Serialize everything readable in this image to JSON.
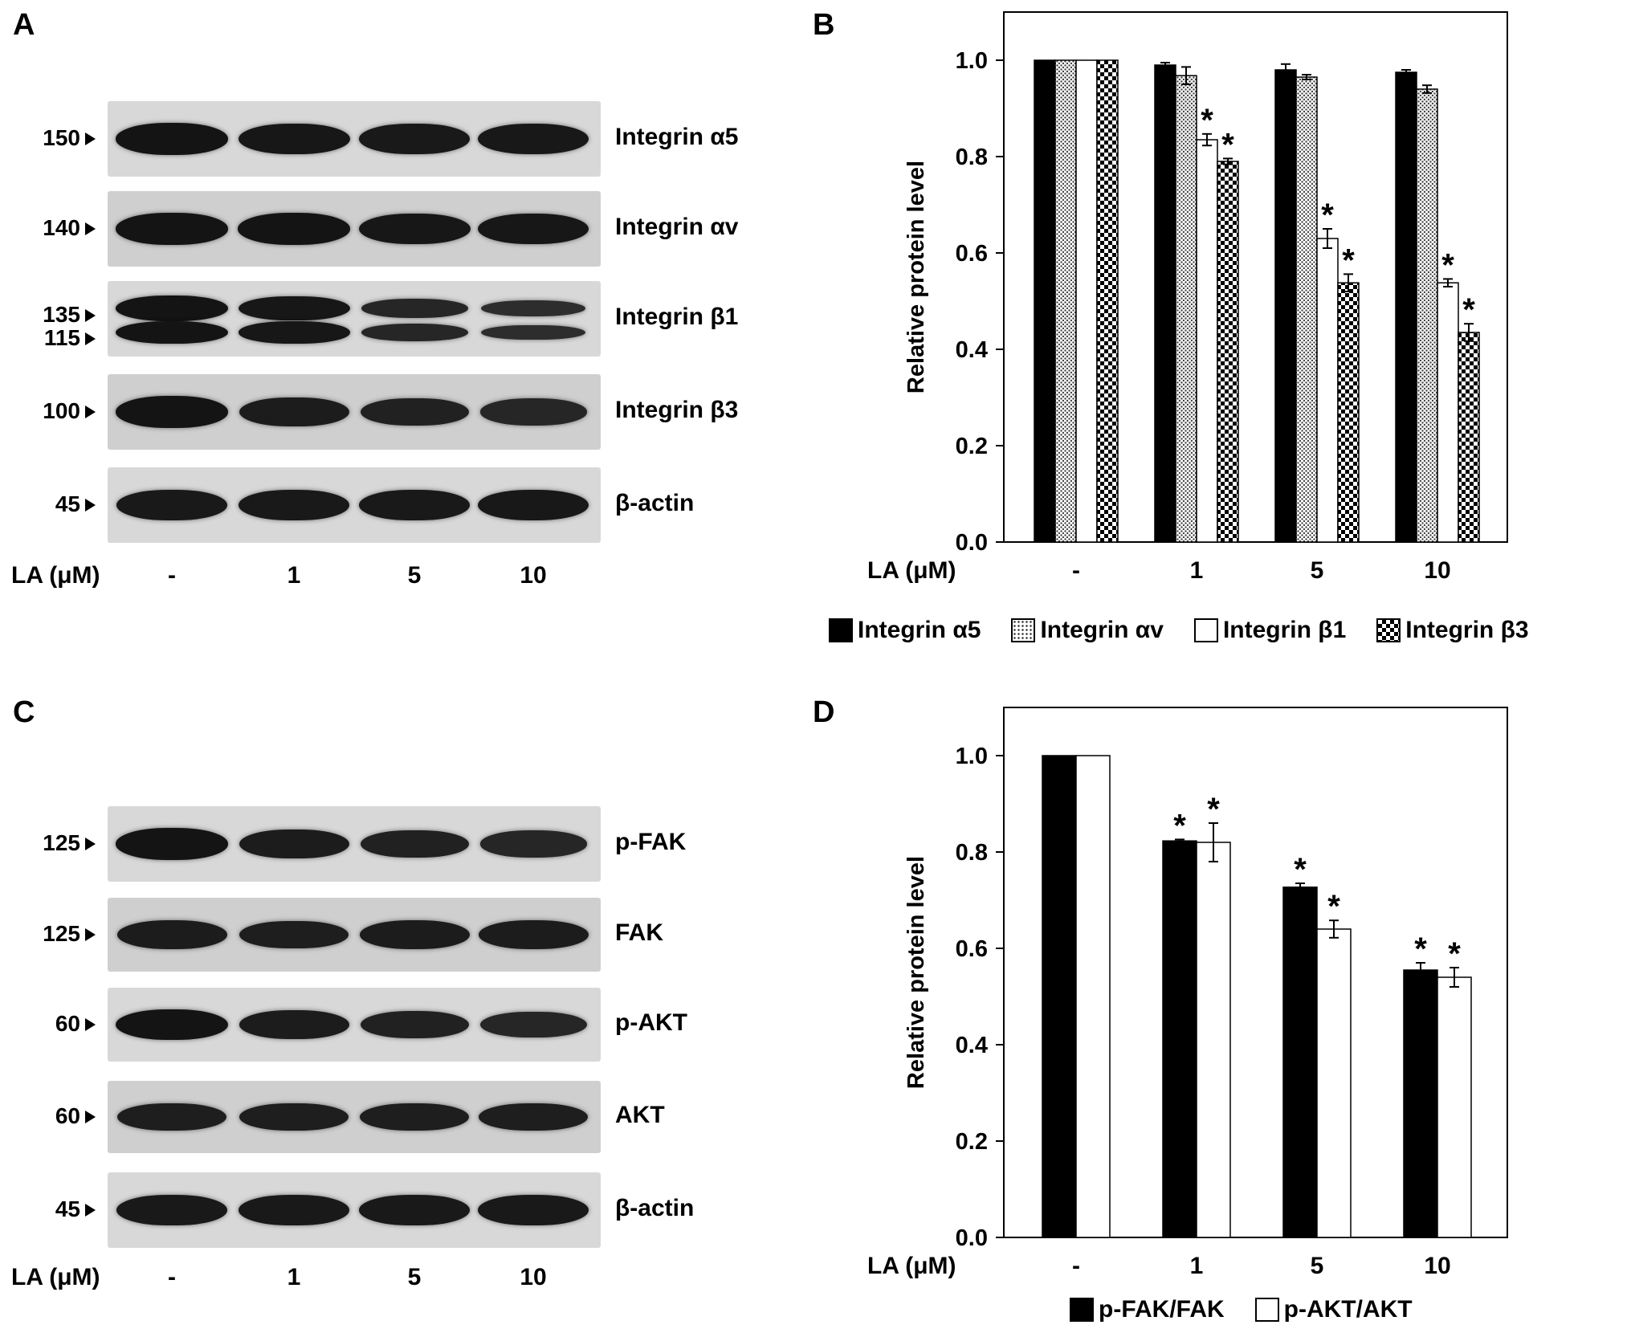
{
  "panels": {
    "A": "A",
    "B": "B",
    "C": "C",
    "D": "D"
  },
  "blot_A": {
    "rows": [
      {
        "protein": "Integrin α5",
        "mw": [
          "150"
        ],
        "intensity": [
          1.0,
          0.95,
          0.9,
          0.92
        ]
      },
      {
        "protein": "Integrin αv",
        "mw": [
          "140"
        ],
        "intensity": [
          1.0,
          1.0,
          0.95,
          0.93
        ]
      },
      {
        "protein": "Integrin β1",
        "mw": [
          "135",
          "115"
        ],
        "intensity": [
          1.0,
          0.95,
          0.65,
          0.5
        ]
      },
      {
        "protein": "Integrin β3",
        "mw": [
          "100"
        ],
        "intensity": [
          1.0,
          0.85,
          0.75,
          0.65
        ]
      },
      {
        "protein": "β-actin",
        "mw": [
          "45"
        ],
        "intensity": [
          0.9,
          0.9,
          0.9,
          0.92
        ]
      }
    ],
    "la_label": "LA  (μM)",
    "lanes": [
      "-",
      "1",
      "5",
      "10"
    ]
  },
  "blot_C": {
    "rows": [
      {
        "protein": "p-FAK",
        "mw": [
          "125"
        ],
        "intensity": [
          1.0,
          0.85,
          0.75,
          0.65
        ]
      },
      {
        "protein": "FAK",
        "mw": [
          "125"
        ],
        "intensity": [
          0.85,
          0.8,
          0.85,
          0.85
        ]
      },
      {
        "protein": "p-AKT",
        "mw": [
          "60"
        ],
        "intensity": [
          1.0,
          0.85,
          0.75,
          0.65
        ]
      },
      {
        "protein": "AKT",
        "mw": [
          "60"
        ],
        "intensity": [
          0.8,
          0.8,
          0.8,
          0.8
        ]
      },
      {
        "protein": "β-actin",
        "mw": [
          "45"
        ],
        "intensity": [
          0.9,
          0.9,
          0.9,
          0.9
        ]
      }
    ],
    "la_label": "LA  (μM)",
    "lanes": [
      "-",
      "1",
      "5",
      "10"
    ]
  },
  "chart_data": [
    {
      "panel": "B",
      "type": "bar",
      "ylabel": "Relative protein level",
      "xlabel": "LA  (μM)",
      "categories": [
        "-",
        "1",
        "5",
        "10"
      ],
      "ylim": [
        0,
        1.1
      ],
      "yticks": [
        "0.0",
        "0.2",
        "0.4",
        "0.6",
        "0.8",
        "1.0"
      ],
      "grid": false,
      "legend_position": "bottom",
      "series": [
        {
          "name": "Integrin α5",
          "pattern": "solid",
          "values": [
            1.0,
            0.99,
            0.98,
            0.975
          ],
          "errors": [
            0,
            0.005,
            0.012,
            0.005
          ],
          "significant": [
            false,
            false,
            false,
            false
          ]
        },
        {
          "name": "Integrin αv",
          "pattern": "dots",
          "values": [
            1.0,
            0.968,
            0.965,
            0.94
          ],
          "errors": [
            0,
            0.018,
            0.005,
            0.008
          ],
          "significant": [
            false,
            false,
            false,
            false
          ]
        },
        {
          "name": "Integrin β1",
          "pattern": "open",
          "values": [
            1.0,
            0.835,
            0.63,
            0.538
          ],
          "errors": [
            0,
            0.012,
            0.02,
            0.008
          ],
          "significant": [
            false,
            true,
            true,
            true
          ]
        },
        {
          "name": "Integrin β3",
          "pattern": "checker",
          "values": [
            1.0,
            0.79,
            0.538,
            0.435
          ],
          "errors": [
            0,
            0.006,
            0.018,
            0.018
          ],
          "significant": [
            false,
            true,
            true,
            true
          ]
        }
      ],
      "annotation": "*"
    },
    {
      "panel": "D",
      "type": "bar",
      "ylabel": "Relative protein level",
      "xlabel": "LA  (μM)",
      "categories": [
        "-",
        "1",
        "5",
        "10"
      ],
      "ylim": [
        0,
        1.1
      ],
      "yticks": [
        "0.0",
        "0.2",
        "0.4",
        "0.6",
        "0.8",
        "1.0"
      ],
      "grid": false,
      "legend_position": "bottom",
      "series": [
        {
          "name": "p-FAK/FAK",
          "pattern": "solid",
          "values": [
            1.0,
            0.823,
            0.727,
            0.555
          ],
          "errors": [
            0,
            0.003,
            0.008,
            0.015
          ],
          "significant": [
            false,
            true,
            true,
            true
          ]
        },
        {
          "name": "p-AKT/AKT",
          "pattern": "open",
          "values": [
            1.0,
            0.82,
            0.64,
            0.54
          ],
          "errors": [
            0,
            0.04,
            0.018,
            0.02
          ],
          "significant": [
            false,
            true,
            true,
            true
          ]
        }
      ],
      "annotation": "*"
    }
  ],
  "colors": {
    "ink": "#000000",
    "membrane": "#d4d4d4",
    "band": "#111111"
  }
}
